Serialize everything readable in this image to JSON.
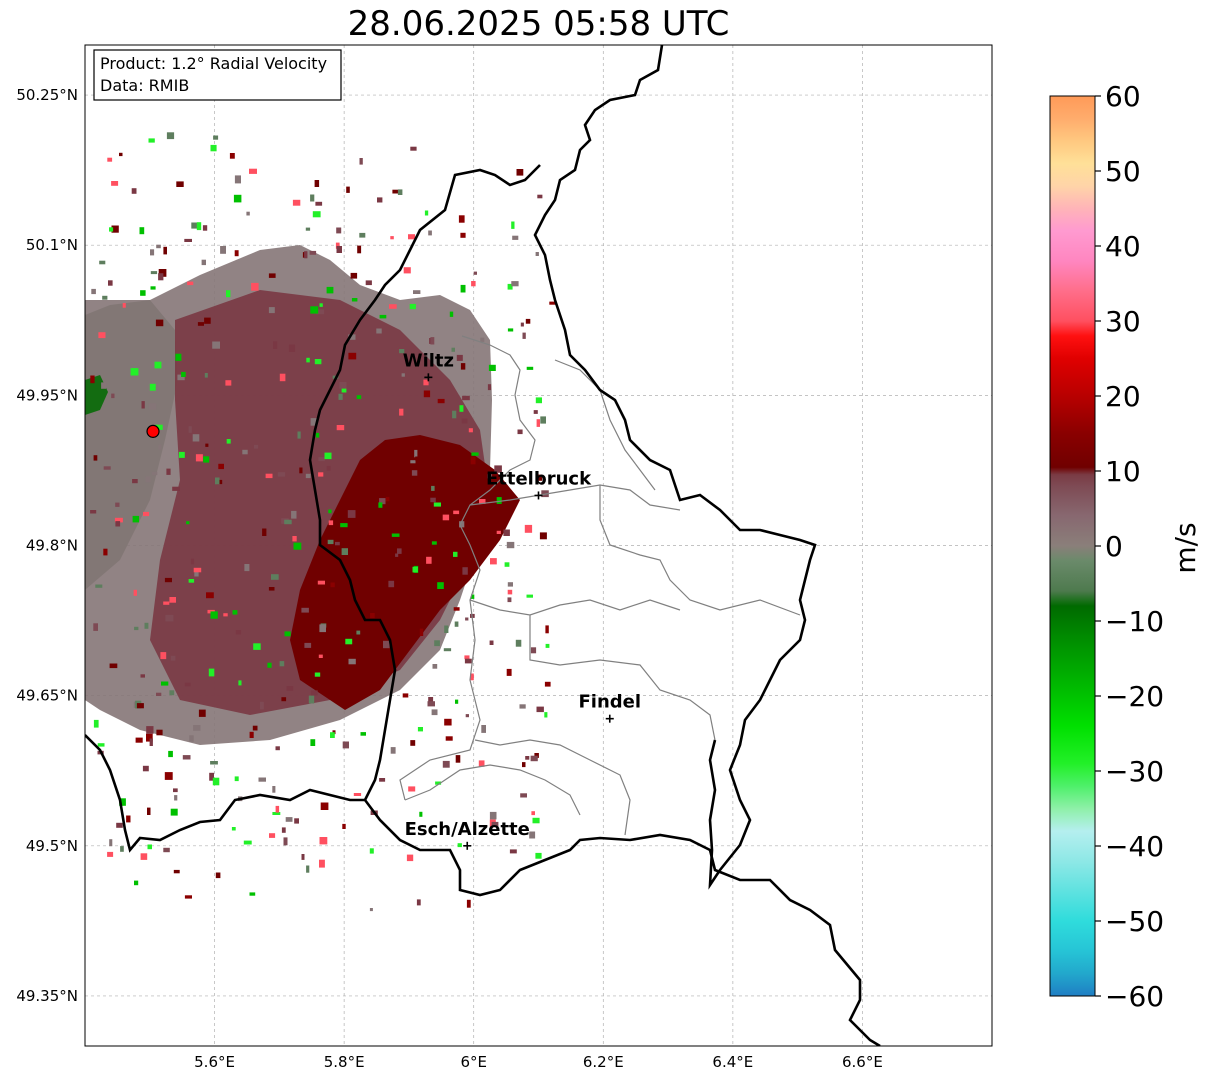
{
  "title": "28.06.2025 05:58 UTC",
  "info_box": {
    "line1": "Product: 1.2° Radial Velocity",
    "line2": "Data: RMIB"
  },
  "map": {
    "lon_range": [
      5.4,
      6.8
    ],
    "lat_range": [
      49.3,
      50.3
    ],
    "lon_ticks": [
      {
        "value": 5.6,
        "label": "5.6°E"
      },
      {
        "value": 5.8,
        "label": "5.8°E"
      },
      {
        "value": 6.0,
        "label": "6°E"
      },
      {
        "value": 6.2,
        "label": "6.2°E"
      },
      {
        "value": 6.4,
        "label": "6.4°E"
      },
      {
        "value": 6.6,
        "label": "6.6°E"
      }
    ],
    "lat_ticks": [
      {
        "value": 49.35,
        "label": "49.35°N"
      },
      {
        "value": 49.5,
        "label": "49.5°N"
      },
      {
        "value": 49.65,
        "label": "49.65°N"
      },
      {
        "value": 49.8,
        "label": "49.8°N"
      },
      {
        "value": 49.95,
        "label": "49.95°N"
      },
      {
        "value": 50.1,
        "label": "50.1°N"
      },
      {
        "value": 50.25,
        "label": "50.25°N"
      }
    ],
    "cities": [
      {
        "name": "Wiltz",
        "lon": 5.93,
        "lat": 49.968
      },
      {
        "name": "Ettelbruck",
        "lon": 6.1,
        "lat": 49.85
      },
      {
        "name": "Findel",
        "lon": 6.21,
        "lat": 49.627
      },
      {
        "name": "Esch/Alzette",
        "lon": 5.99,
        "lat": 49.5
      }
    ],
    "radar_site": {
      "lon": 5.505,
      "lat": 49.914
    }
  },
  "colorbar": {
    "label": "m/s",
    "min": -60,
    "max": 60,
    "ticks": [
      {
        "value": 60,
        "label": "60"
      },
      {
        "value": 50,
        "label": "50"
      },
      {
        "value": 40,
        "label": "40"
      },
      {
        "value": 30,
        "label": "30"
      },
      {
        "value": 20,
        "label": "20"
      },
      {
        "value": 10,
        "label": "10"
      },
      {
        "value": 0,
        "label": "0"
      },
      {
        "value": -10,
        "label": "−10"
      },
      {
        "value": -20,
        "label": "−20"
      },
      {
        "value": -30,
        "label": "−30"
      },
      {
        "value": -40,
        "label": "−40"
      },
      {
        "value": -50,
        "label": "−50"
      },
      {
        "value": -60,
        "label": "−60"
      }
    ],
    "stops": [
      {
        "value": -60,
        "color": "#1f7ec4"
      },
      {
        "value": -57,
        "color": "#22a8cc"
      },
      {
        "value": -54,
        "color": "#26c4d6"
      },
      {
        "value": -50,
        "color": "#2fdcdc"
      },
      {
        "value": -46,
        "color": "#5fe2e0"
      },
      {
        "value": -42,
        "color": "#8ee8e6"
      },
      {
        "value": -38,
        "color": "#b5efef"
      },
      {
        "value": -35,
        "color": "#8ef0a8"
      },
      {
        "value": -32,
        "color": "#4ef06a"
      },
      {
        "value": -29,
        "color": "#22f028"
      },
      {
        "value": -24,
        "color": "#00e000"
      },
      {
        "value": -18,
        "color": "#00b400"
      },
      {
        "value": -12,
        "color": "#008a00"
      },
      {
        "value": -8,
        "color": "#006a00"
      },
      {
        "value": -6,
        "color": "#4e7a4e"
      },
      {
        "value": -2,
        "color": "#6a8a6a"
      },
      {
        "value": 0,
        "color": "#8a7f7a"
      },
      {
        "value": 4,
        "color": "#886870"
      },
      {
        "value": 8,
        "color": "#7e4a54"
      },
      {
        "value": 9.5,
        "color": "#7a3b44"
      },
      {
        "value": 10.5,
        "color": "#700000"
      },
      {
        "value": 15,
        "color": "#8a0000"
      },
      {
        "value": 20,
        "color": "#b80000"
      },
      {
        "value": 25,
        "color": "#e00000"
      },
      {
        "value": 28,
        "color": "#ff1010"
      },
      {
        "value": 30,
        "color": "#ff5060"
      },
      {
        "value": 34,
        "color": "#ff6e8a"
      },
      {
        "value": 38,
        "color": "#ff86c0"
      },
      {
        "value": 42,
        "color": "#ff9ad0"
      },
      {
        "value": 45,
        "color": "#ffb4b8"
      },
      {
        "value": 48,
        "color": "#ffd4a8"
      },
      {
        "value": 51,
        "color": "#ffe098"
      },
      {
        "value": 54,
        "color": "#ffc880"
      },
      {
        "value": 57,
        "color": "#ffac6c"
      },
      {
        "value": 60,
        "color": "#ff9a58"
      }
    ]
  }
}
